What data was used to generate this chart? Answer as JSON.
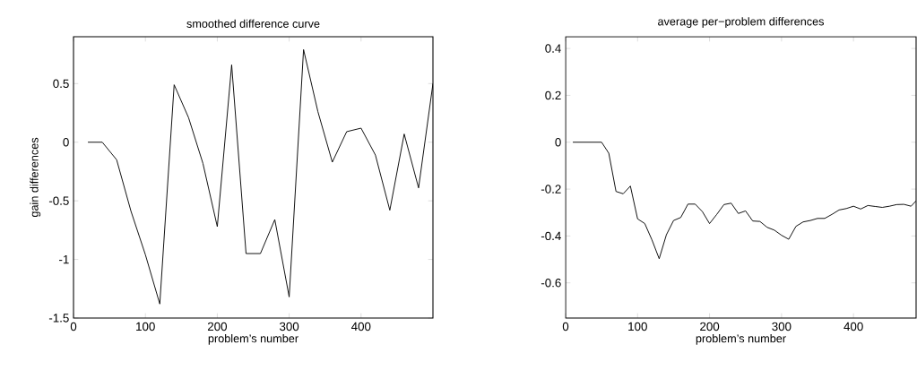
{
  "chart_data": [
    {
      "type": "line",
      "title": "smoothed difference curve",
      "xlabel": "problem’s number",
      "ylabel": "gain differences",
      "x": [
        20,
        40,
        60,
        80,
        100,
        120,
        140,
        160,
        180,
        200,
        220,
        240,
        260,
        280,
        300,
        320,
        340,
        360,
        380,
        400,
        420,
        440,
        460,
        480,
        500
      ],
      "series": [
        {
          "color": "#000000",
          "values": [
            0,
            0,
            -0.15,
            -0.59,
            -0.96,
            -1.38,
            0.49,
            0.21,
            -0.18,
            -0.72,
            0.66,
            -0.95,
            -0.95,
            -0.66,
            -1.32,
            0.79,
            0.26,
            -0.17,
            0.09,
            0.12,
            -0.11,
            -0.58,
            0.07,
            -0.39,
            0.5
          ]
        }
      ],
      "line_style": "solid",
      "xlim": [
        0,
        500
      ],
      "ylim": [
        -1.5,
        0.9
      ],
      "xticks": [
        0,
        100,
        200,
        300,
        400
      ],
      "yticks": [
        -1.5,
        -1,
        -0.5,
        0,
        0.5
      ]
    },
    {
      "type": "line",
      "title": "average per−problem differences",
      "xlabel": "problem’s number",
      "x": [
        10,
        20,
        30,
        40,
        50,
        60,
        70,
        80,
        90,
        100,
        110,
        120,
        130,
        140,
        150,
        160,
        170,
        180,
        190,
        200,
        210,
        220,
        230,
        240,
        250,
        260,
        270,
        280,
        290,
        300,
        310,
        320,
        330,
        340,
        350,
        360,
        370,
        380,
        390,
        400,
        410,
        420,
        430,
        440,
        450,
        460,
        470,
        480,
        487
      ],
      "series": [
        {
          "color": "#000000",
          "values": [
            0,
            0,
            0,
            0,
            0,
            -0.047,
            -0.21,
            -0.22,
            -0.187,
            -0.327,
            -0.347,
            -0.417,
            -0.497,
            -0.395,
            -0.334,
            -0.321,
            -0.264,
            -0.264,
            -0.296,
            -0.347,
            -0.308,
            -0.266,
            -0.26,
            -0.304,
            -0.293,
            -0.336,
            -0.338,
            -0.363,
            -0.375,
            -0.397,
            -0.414,
            -0.359,
            -0.34,
            -0.334,
            -0.325,
            -0.325,
            -0.308,
            -0.289,
            -0.283,
            -0.273,
            -0.285,
            -0.27,
            -0.274,
            -0.278,
            -0.273,
            -0.266,
            -0.265,
            -0.273,
            -0.25
          ]
        }
      ],
      "line_style": "solid",
      "xlim": [
        0,
        487
      ],
      "ylim": [
        -0.75,
        0.45
      ],
      "xticks": [
        0,
        100,
        200,
        300,
        400
      ],
      "yticks": [
        -0.6,
        -0.4,
        -0.2,
        0,
        0.2,
        0.4
      ]
    }
  ]
}
